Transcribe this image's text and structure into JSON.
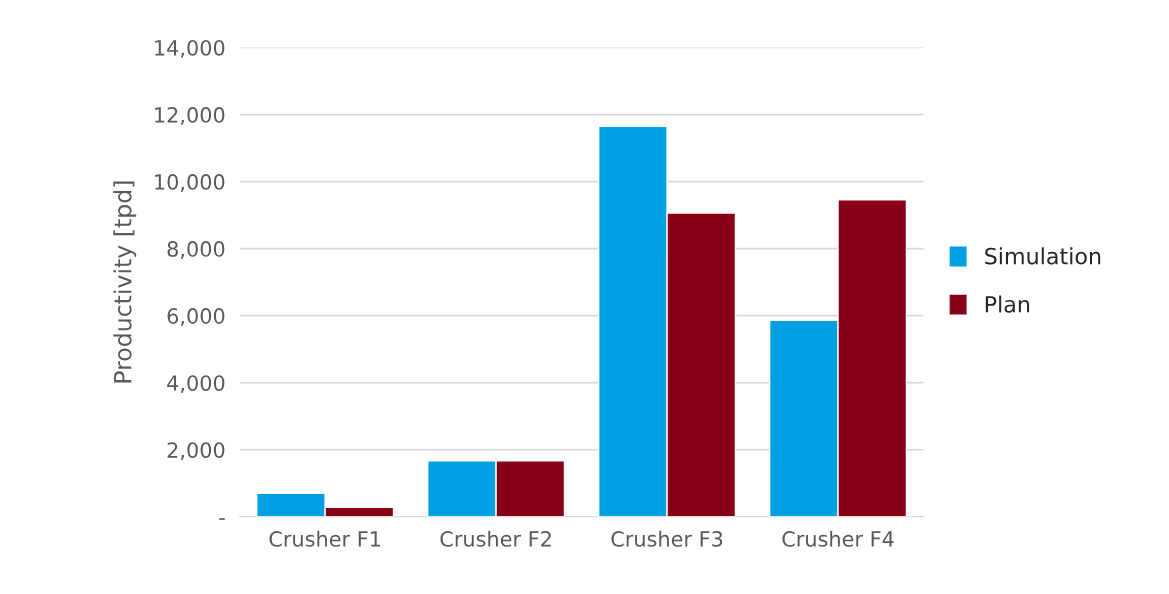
{
  "chart_data": {
    "type": "bar",
    "ylabel": "Productivity [tpd]",
    "categories": [
      "Crusher F1",
      "Crusher F2",
      "Crusher F3",
      "Crusher F4"
    ],
    "series": [
      {
        "name": "Simulation",
        "color": "#00a0e3",
        "values": [
          700,
          1670,
          11650,
          5860
        ]
      },
      {
        "name": "Plan",
        "color": "#870016",
        "values": [
          280,
          1670,
          9060,
          9460
        ]
      }
    ],
    "ylim": [
      0,
      14000
    ],
    "yticks": [
      {
        "value": 0,
        "label": "-"
      },
      {
        "value": 2000,
        "label": "2,000"
      },
      {
        "value": 4000,
        "label": "4,000"
      },
      {
        "value": 6000,
        "label": "6,000"
      },
      {
        "value": 8000,
        "label": "8,000"
      },
      {
        "value": 10000,
        "label": "10,000"
      },
      {
        "value": 12000,
        "label": "12,000"
      },
      {
        "value": 14000,
        "label": "14,000"
      }
    ],
    "grid": "y",
    "legend": "right"
  }
}
